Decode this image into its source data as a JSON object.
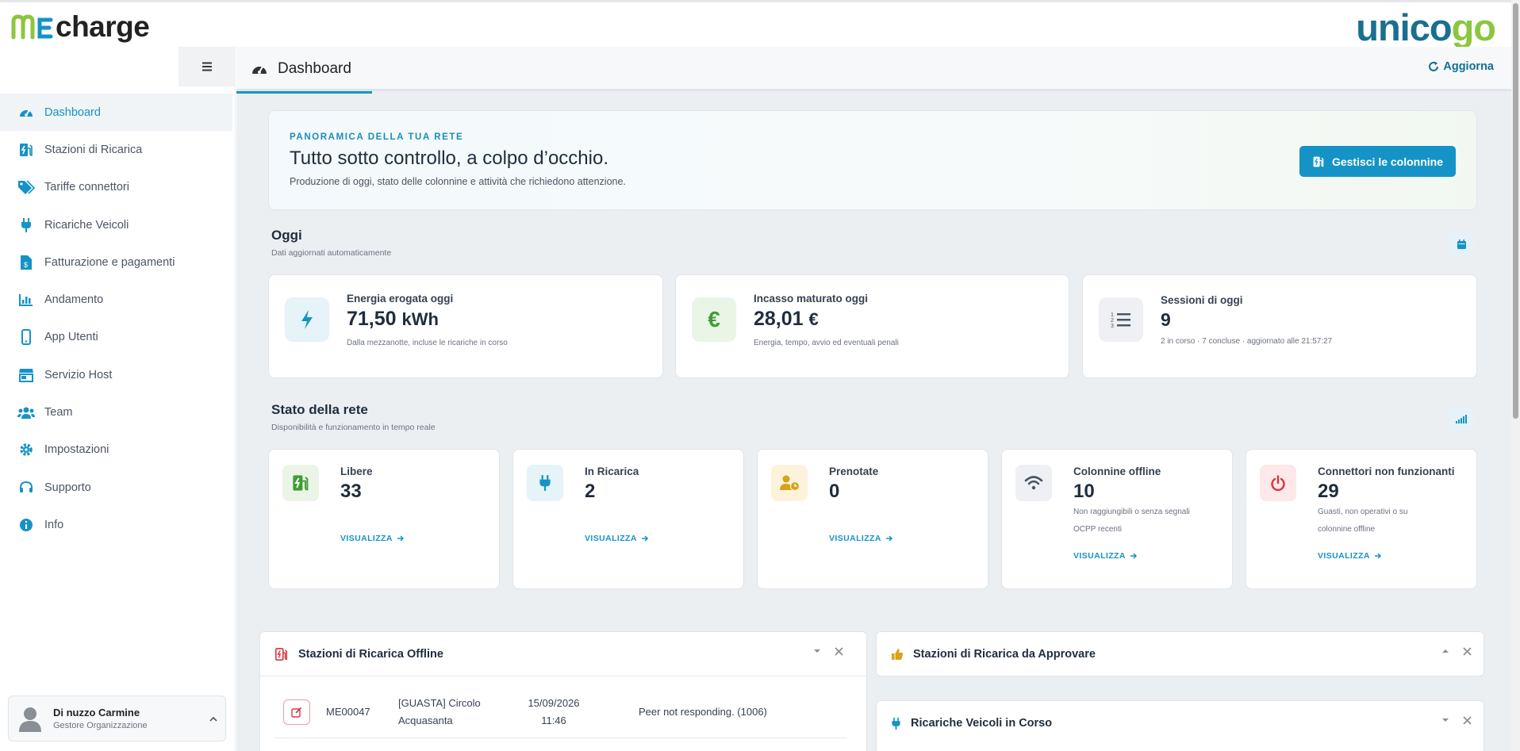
{
  "app": {
    "logo_text": "charge",
    "brand": "unicogo"
  },
  "sidebar": {
    "items": [
      {
        "label": "Dashboard",
        "icon": "gauge-icon",
        "active": true
      },
      {
        "label": "Stazioni di Ricarica",
        "icon": "charging-station-icon"
      },
      {
        "label": "Tariffe connettori",
        "icon": "tags-icon"
      },
      {
        "label": "Ricariche Veicoli",
        "icon": "plug-icon"
      },
      {
        "label": "Fatturazione e pagamenti",
        "icon": "invoice-icon"
      },
      {
        "label": "Andamento",
        "icon": "chart-icon"
      },
      {
        "label": "App Utenti",
        "icon": "mobile-icon"
      },
      {
        "label": "Servizio Host",
        "icon": "store-icon"
      },
      {
        "label": "Team",
        "icon": "users-icon"
      },
      {
        "label": "Impostazioni",
        "icon": "gear-icon"
      },
      {
        "label": "Supporto",
        "icon": "headset-icon"
      },
      {
        "label": "Info",
        "icon": "info-icon"
      }
    ],
    "user": {
      "name": "Di nuzzo Carmine",
      "role": "Gestore Organizzazione"
    }
  },
  "header": {
    "tab": "Dashboard",
    "refresh_label": "Aggiorna"
  },
  "hero": {
    "eyebrow": "PANORAMICA DELLA TUA RETE",
    "title": "Tutto sotto controllo, a colpo d’occhio.",
    "subtitle": "Produzione di oggi, stato delle colonnine e attività che richiedono attenzione.",
    "button": "Gestisci le colonnine"
  },
  "today": {
    "title": "Oggi",
    "subtitle": "Dati aggiornati automaticamente",
    "cards": [
      {
        "label": "Energia erogata oggi",
        "value": "71,50",
        "unit": "kWh",
        "note": "Dalla mezzanotte, incluse le ricariche in corso",
        "icon": "bolt-icon",
        "color": "#1593c6"
      },
      {
        "label": "Incasso maturato oggi",
        "value": "28,01",
        "unit": "€",
        "note": "Energia, tempo, avvio ed eventuali penali",
        "icon": "euro-icon",
        "color": "#3f9c35"
      },
      {
        "label": "Sessioni di oggi",
        "value": "9",
        "unit": "",
        "note": "2 in corso · 7 concluse · aggiornato alle 21:57:27",
        "icon": "list-icon",
        "color": "#4b5563"
      }
    ]
  },
  "network": {
    "title": "Stato della rete",
    "subtitle": "Disponibilità e funzionamento in tempo reale",
    "link_label": "VISUALIZZA",
    "cards": [
      {
        "label": "Libere",
        "value": "33",
        "note": "",
        "icon": "charging-station-icon",
        "color": "#3f9c35"
      },
      {
        "label": "In Ricarica",
        "value": "2",
        "note": "",
        "icon": "plug-icon",
        "color": "#1593c6"
      },
      {
        "label": "Prenotate",
        "value": "0",
        "note": "",
        "icon": "user-clock-icon",
        "color": "#d9a21b"
      },
      {
        "label": "Colonnine offline",
        "value": "10",
        "note": "Non raggiungibili o senza segnali OCPP recenti",
        "icon": "wifi-icon",
        "color": "#4b5563"
      },
      {
        "label": "Connettori non funzionanti",
        "value": "29",
        "note": "Guasti, non operativi o su colonnine offline",
        "icon": "power-icon",
        "color": "#d9363e"
      }
    ]
  },
  "panels": {
    "offline": {
      "title": "Stazioni di Ricarica Offline",
      "rows": [
        {
          "id": "ME00047",
          "name_line1": "[GUASTA] Circolo",
          "name_line2": "Acquasanta",
          "date": "15/09/2026",
          "time": "11:46",
          "status": "Peer not responding. (1006)"
        }
      ]
    },
    "approve": {
      "title": "Stazioni di Ricarica da Approvare"
    },
    "ongoing": {
      "title": "Ricariche Veicoli in Corso"
    }
  },
  "colors": {
    "accent": "#1593c6",
    "green": "#3f9c35",
    "red": "#d9363e",
    "amber": "#d9a21b"
  }
}
